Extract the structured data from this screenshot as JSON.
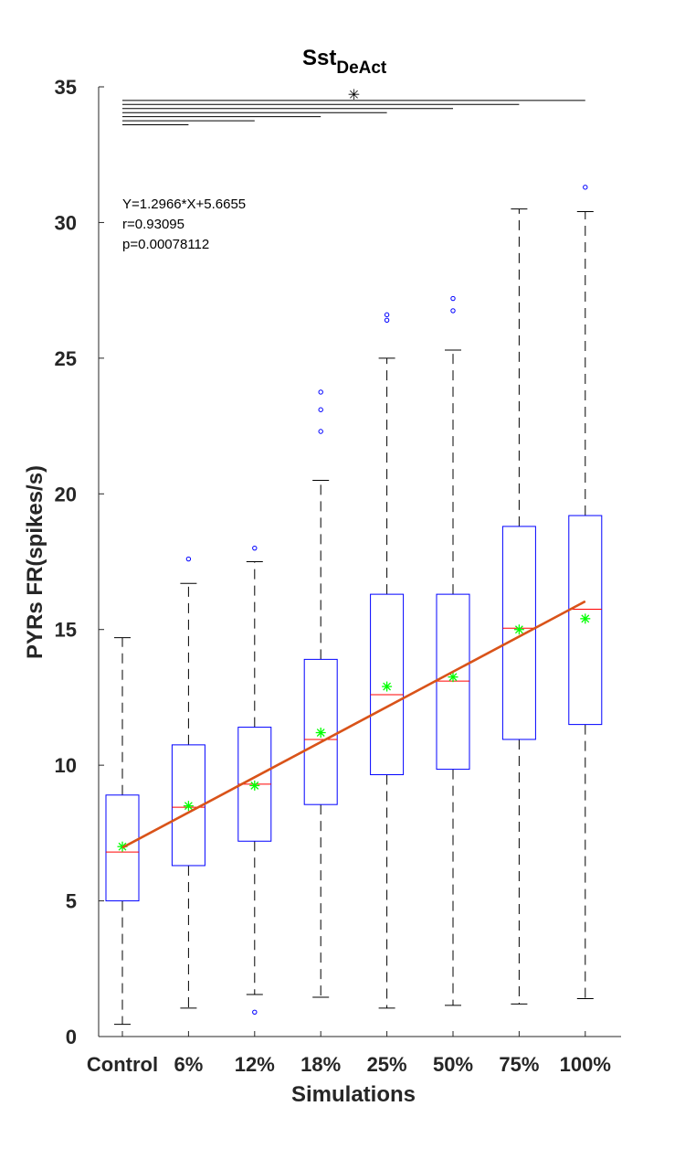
{
  "chart_data": {
    "type": "box",
    "title": "Sst",
    "title_subscript": "DeAct",
    "xlabel": "Simulations",
    "ylabel": "PYRs FR(spikes/s)",
    "ylim": [
      0,
      35
    ],
    "yticks": [
      0,
      5,
      10,
      15,
      20,
      25,
      30,
      35
    ],
    "grid": false,
    "categories": [
      "Control",
      "6%",
      "12%",
      "18%",
      "25%",
      "50%",
      "75%",
      "100%"
    ],
    "boxes": [
      {
        "category": "Control",
        "whisker_low": 0.45,
        "q1": 5.0,
        "median": 6.8,
        "q3": 8.9,
        "whisker_high": 14.7,
        "mean": 7.0,
        "outliers": []
      },
      {
        "category": "6%",
        "whisker_low": 1.05,
        "q1": 6.3,
        "median": 8.45,
        "q3": 10.75,
        "whisker_high": 16.7,
        "mean": 8.5,
        "outliers": [
          17.6
        ]
      },
      {
        "category": "12%",
        "whisker_low": 1.55,
        "q1": 7.2,
        "median": 9.3,
        "q3": 11.4,
        "whisker_high": 17.5,
        "mean": 9.25,
        "outliers": [
          18.0,
          0.9
        ]
      },
      {
        "category": "18%",
        "whisker_low": 1.45,
        "q1": 8.55,
        "median": 10.95,
        "q3": 13.9,
        "whisker_high": 20.5,
        "mean": 11.2,
        "outliers": [
          23.75,
          23.1,
          22.3
        ]
      },
      {
        "category": "25%",
        "whisker_low": 1.05,
        "q1": 9.65,
        "median": 12.6,
        "q3": 16.3,
        "whisker_high": 25.0,
        "mean": 12.9,
        "outliers": [
          26.6,
          26.4
        ]
      },
      {
        "category": "50%",
        "whisker_low": 1.15,
        "q1": 9.85,
        "median": 13.1,
        "q3": 16.3,
        "whisker_high": 25.3,
        "mean": 13.25,
        "outliers": [
          27.2,
          26.75
        ]
      },
      {
        "category": "75%",
        "whisker_low": 1.2,
        "q1": 10.95,
        "median": 15.05,
        "q3": 18.8,
        "whisker_high": 30.5,
        "mean": 15.0,
        "outliers": []
      },
      {
        "category": "100%",
        "whisker_low": 1.4,
        "q1": 11.5,
        "median": 15.75,
        "q3": 19.2,
        "whisker_high": 30.4,
        "mean": 15.4,
        "outliers": [
          31.3
        ]
      }
    ],
    "fit_line": {
      "slope": 1.2966,
      "intercept": 5.6655,
      "x_start": 1,
      "x_end": 8
    },
    "annotation_lines": [
      "Y=1.2966*X+5.6655",
      "r=0.93095",
      "p=0.00078112"
    ],
    "significance": {
      "marker": "✳",
      "bars": [
        {
          "from": "Control",
          "to": "100%",
          "y": 34.5
        },
        {
          "from": "Control",
          "to": "75%",
          "y": 34.35
        },
        {
          "from": "Control",
          "to": "50%",
          "y": 34.2
        },
        {
          "from": "Control",
          "to": "25%",
          "y": 34.05
        },
        {
          "from": "Control",
          "to": "18%",
          "y": 33.9
        },
        {
          "from": "Control",
          "to": "12%",
          "y": 33.75
        },
        {
          "from": "Control",
          "to": "6%",
          "y": 33.6
        }
      ]
    },
    "colors": {
      "box": "#0000ff",
      "median": "#ff0000",
      "mean": "#00ff00",
      "outlier": "#0000ff",
      "whisker": "#000000",
      "fit": "#d95319",
      "axis": "#262626"
    }
  }
}
